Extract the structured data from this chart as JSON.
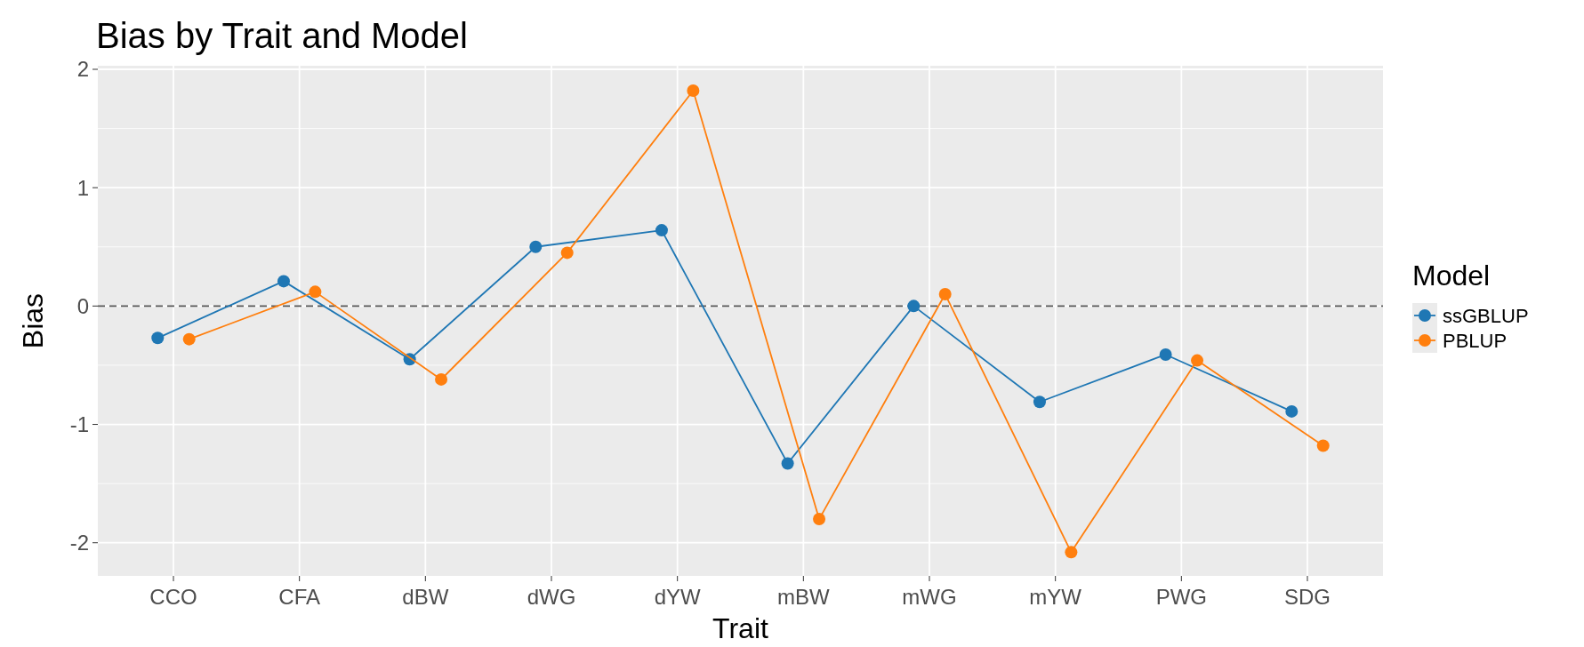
{
  "chart_data": {
    "type": "line",
    "title": "Bias by Trait and Model",
    "xlabel": "Trait",
    "ylabel": "Bias",
    "legend_title": "Model",
    "categories": [
      "CCO",
      "CFA",
      "dBW",
      "dWG",
      "dYW",
      "mBW",
      "mWG",
      "mYW",
      "PWG",
      "SDG"
    ],
    "series": [
      {
        "name": "ssGBLUP",
        "color": "#1f77b4",
        "values": [
          -0.27,
          0.21,
          -0.45,
          0.5,
          0.64,
          -1.33,
          0,
          -0.81,
          -0.41,
          -0.89
        ]
      },
      {
        "name": "PBLUP",
        "color": "#ff7f0e",
        "values": [
          -0.28,
          0.12,
          -0.62,
          0.45,
          1.82,
          -1.8,
          0.1,
          -2.08,
          -0.46,
          -1.18
        ]
      }
    ],
    "ylim": [
      -2.28,
      2.03
    ],
    "yticks": [
      -2,
      -1,
      0,
      1,
      2
    ],
    "grid": true,
    "legend": "right",
    "marker": "circle",
    "line_style": "solid",
    "ref_lines": [
      {
        "axis": "y",
        "value": 0,
        "color": "#555555",
        "line_style": "dashed"
      }
    ]
  }
}
